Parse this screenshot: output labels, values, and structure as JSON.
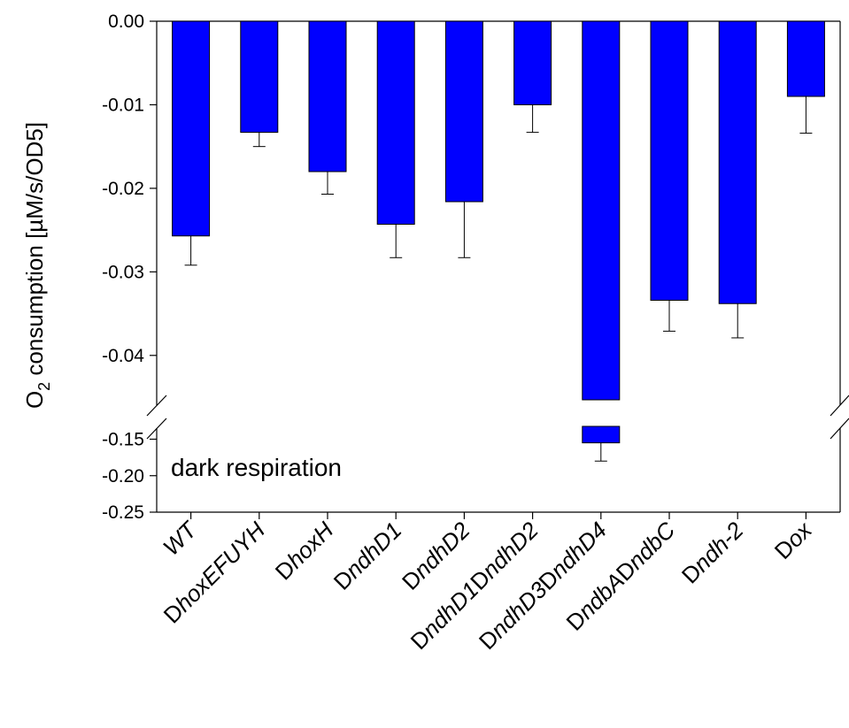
{
  "chart_data": {
    "type": "bar",
    "ylabel_main": "O",
    "ylabel_sub": "2",
    "ylabel_rest": " consumption [µM/s/OD5]",
    "annotation": "dark respiration",
    "bar_color": "#0000ff",
    "axis_break": true,
    "upper_segment": {
      "ylim": [
        -0.045,
        0.0
      ],
      "ticks": [
        "0.00",
        "-0.01",
        "-0.02",
        "-0.03",
        "-0.04"
      ],
      "tick_values": [
        0.0,
        -0.01,
        -0.02,
        -0.03,
        -0.04
      ]
    },
    "lower_segment": {
      "ylim": [
        -0.25,
        -0.13
      ],
      "ticks": [
        "-0.15",
        "-0.20",
        "-0.25"
      ],
      "tick_values": [
        -0.15,
        -0.2,
        -0.25
      ]
    },
    "categories": [
      {
        "prefix": "",
        "name": "WT"
      },
      {
        "prefix": "D",
        "name": "hoxEFUYH"
      },
      {
        "prefix": "D",
        "name": "hoxH"
      },
      {
        "prefix": "D",
        "name": "ndhD1"
      },
      {
        "prefix": "D",
        "name": "ndhD2"
      },
      {
        "prefix": "D",
        "name": "ndhD1",
        "prefix2": "D",
        "name2": "ndhD2"
      },
      {
        "prefix": "D",
        "name": "ndhD3",
        "prefix2": "D",
        "name2": "ndhD4"
      },
      {
        "prefix": "D",
        "name": "ndbA",
        "prefix2": "D",
        "name2": "ndbC"
      },
      {
        "prefix": "D",
        "name": "ndh-2"
      },
      {
        "prefix": "D",
        "name": "ox"
      }
    ],
    "values": [
      -0.0257,
      -0.0133,
      -0.018,
      -0.0243,
      -0.0216,
      -0.01,
      -0.155,
      -0.0334,
      -0.0338,
      -0.009
    ],
    "errors": [
      0.0035,
      0.0017,
      0.0027,
      0.004,
      0.0067,
      0.0033,
      0.025,
      0.0037,
      0.0041,
      0.0044
    ]
  }
}
